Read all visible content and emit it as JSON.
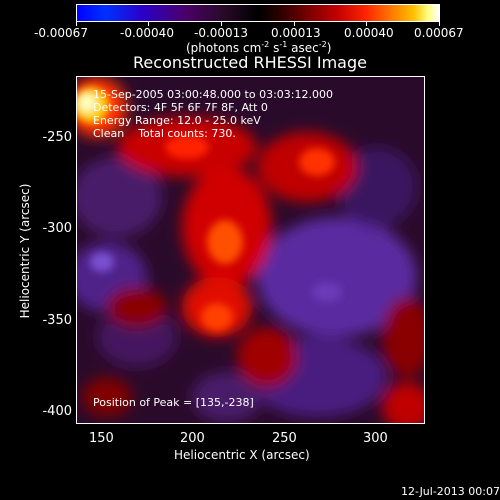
{
  "colorbar": {
    "tick_labels": [
      "-0.00067",
      "-0.00040",
      "-0.00013",
      "0.00013",
      "0.00040",
      "0.00067"
    ],
    "units": [
      "(photons cm",
      "-2",
      " s",
      "-1",
      " asec",
      "-2",
      ")"
    ]
  },
  "title": "Reconstructed RHESSI Image",
  "info": {
    "time_range": "15-Sep-2005 03:00:48.000 to 03:03:12.000",
    "detectors": "Detectors: 4F 5F 6F 7F 8F, Att 0",
    "energy": "Energy Range: 12.0 - 25.0 keV",
    "clean": "Clean    Total counts: 730.",
    "peak": "Position of Peak = [135,-238]"
  },
  "axes": {
    "xlabel": "Heliocentric X (arcsec)",
    "ylabel": "Heliocentric Y (arcsec)",
    "xticks": [
      "150",
      "200",
      "250",
      "300"
    ],
    "yticks": [
      "-250",
      "-300",
      "-350",
      "-400"
    ]
  },
  "footer_date": "12-Jul-2013 00:07"
}
